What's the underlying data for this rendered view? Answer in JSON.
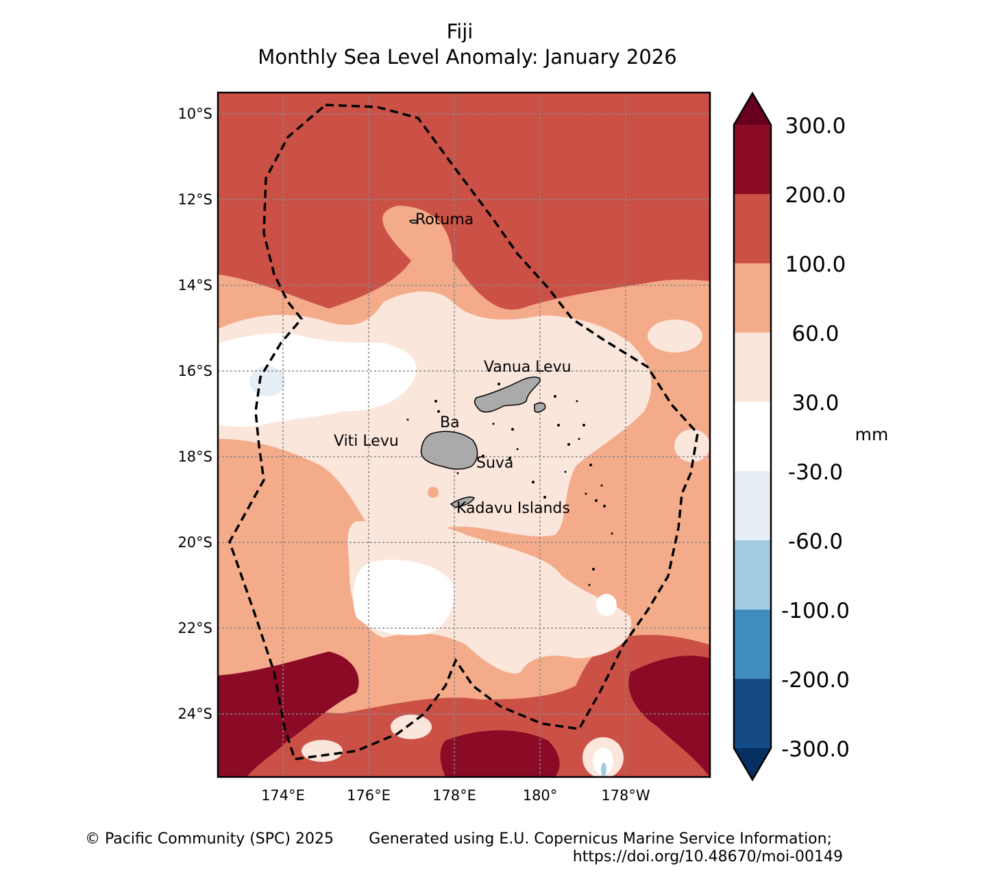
{
  "title": {
    "line1": "Fiji",
    "line2": "Monthly Sea Level Anomaly: January 2026"
  },
  "map": {
    "lat_ticks": [
      "10°S",
      "12°S",
      "14°S",
      "16°S",
      "18°S",
      "20°S",
      "22°S",
      "24°S"
    ],
    "lon_ticks": [
      "174°E",
      "176°E",
      "178°E",
      "180°",
      "178°W"
    ],
    "places": [
      "Rotuma",
      "Vanua Levu",
      "Ba",
      "Viti Levu",
      "Suva",
      "Kadavu Islands"
    ]
  },
  "colorbar": {
    "unit": "mm",
    "levels": [
      "300.0",
      "200.0",
      "100.0",
      "60.0",
      "30.0",
      "-30.0",
      "-60.0",
      "-100.0",
      "-200.0",
      "-300.0"
    ],
    "colors": [
      "#67001f",
      "#8b0a26",
      "#cb5146",
      "#f4ab8a",
      "#fbe6dc",
      "#ffffff",
      "#e5edf5",
      "#a2cbe2",
      "#3f8cc1",
      "#144a86",
      "#053061"
    ]
  },
  "footer": {
    "copyright": "© Pacific Community (SPC) 2025",
    "source_line1": "Generated using E.U. Copernicus Marine Service Information;",
    "source_line2": "https://doi.org/10.48670/moi-00149"
  }
}
